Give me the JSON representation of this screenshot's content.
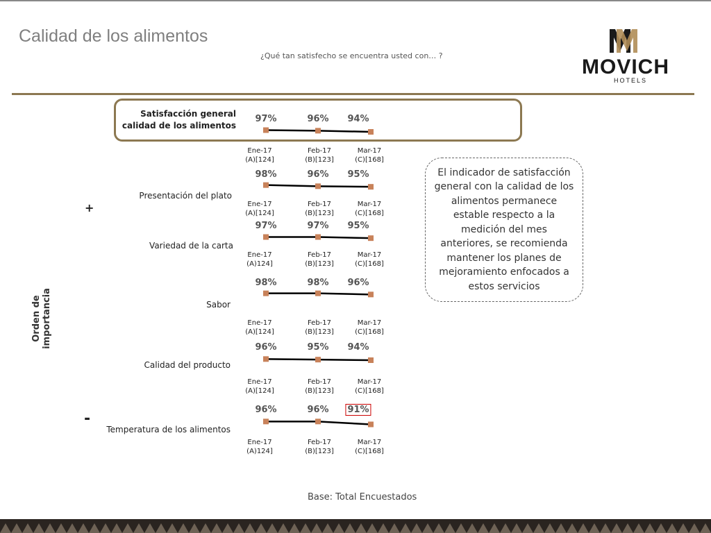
{
  "header": {
    "title": "Calidad de los alimentos",
    "question": "¿Qué tan satisfecho se encuentra usted con… ?",
    "logo_text": "MOVICH",
    "logo_sub": "HOTELS"
  },
  "axis": {
    "label": "Orden de importancia",
    "top_marker": "+",
    "bottom_marker": "-"
  },
  "callout": "El indicador de satisfacción general con la calidad de los alimentos permanece estable respecto a la medición del mes anteriores, se recomienda mantener los planes de mejoramiento enfocados a estos servicios",
  "base": "Base: Total Encuestados",
  "colors": {
    "accent": "#8c7851",
    "marker": "#c8825a",
    "line": "#000000",
    "highlight": "#cc0000"
  },
  "chart_data": [
    {
      "type": "line",
      "title": "Satisfacción general calidad de los alimentos",
      "categories": [
        [
          "Ene-17",
          "(A)[124]"
        ],
        [
          "Feb-17",
          "(B)[123]"
        ],
        [
          "Mar-17",
          "(C)[168]"
        ]
      ],
      "values": [
        97,
        96,
        94
      ],
      "labels": [
        "97%",
        "96%",
        "94%"
      ],
      "highlighted": [
        false,
        false,
        false
      ]
    },
    {
      "type": "line",
      "title": "Presentación del plato",
      "categories": [
        [
          "Ene-17",
          "(A)[124]"
        ],
        [
          "Feb-17",
          "(B)[123]"
        ],
        [
          "Mar-17",
          "(C)[168]"
        ]
      ],
      "values": [
        98,
        96,
        95
      ],
      "labels": [
        "98%",
        "96%",
        "95%"
      ],
      "highlighted": [
        false,
        false,
        false
      ]
    },
    {
      "type": "line",
      "title": "Variedad de la carta",
      "categories": [
        [
          "Ene-17",
          "(A)124]"
        ],
        [
          "Feb-17",
          "(B)[123]"
        ],
        [
          "Mar-17",
          "(C)[168]"
        ]
      ],
      "values": [
        97,
        97,
        95
      ],
      "labels": [
        "97%",
        "97%",
        "95%"
      ],
      "highlighted": [
        false,
        false,
        false
      ]
    },
    {
      "type": "line",
      "title": "Sabor",
      "categories": [
        [
          "Ene-17",
          "(A)[124]"
        ],
        [
          "Feb-17",
          "(B)[123]"
        ],
        [
          "Mar-17",
          "(C)[168]"
        ]
      ],
      "values": [
        98,
        98,
        96
      ],
      "labels": [
        "98%",
        "98%",
        "96%"
      ],
      "highlighted": [
        false,
        false,
        false
      ]
    },
    {
      "type": "line",
      "title": "Calidad del producto",
      "categories": [
        [
          "Ene-17",
          "(A)[124]"
        ],
        [
          "Feb-17",
          "(B)[123]"
        ],
        [
          "Mar-17",
          "(C)[168]"
        ]
      ],
      "values": [
        96,
        95,
        94
      ],
      "labels": [
        "96%",
        "95%",
        "94%"
      ],
      "highlighted": [
        false,
        false,
        false
      ]
    },
    {
      "type": "line",
      "title": "Temperatura de los alimentos",
      "categories": [
        [
          "Ene-17",
          "(A)124]"
        ],
        [
          "Feb-17",
          "(B)[123]"
        ],
        [
          "Mar-17",
          "(C)[168]"
        ]
      ],
      "values": [
        96,
        96,
        91
      ],
      "labels": [
        "96%",
        "96%",
        "91%"
      ],
      "highlighted": [
        false,
        false,
        true
      ]
    }
  ]
}
